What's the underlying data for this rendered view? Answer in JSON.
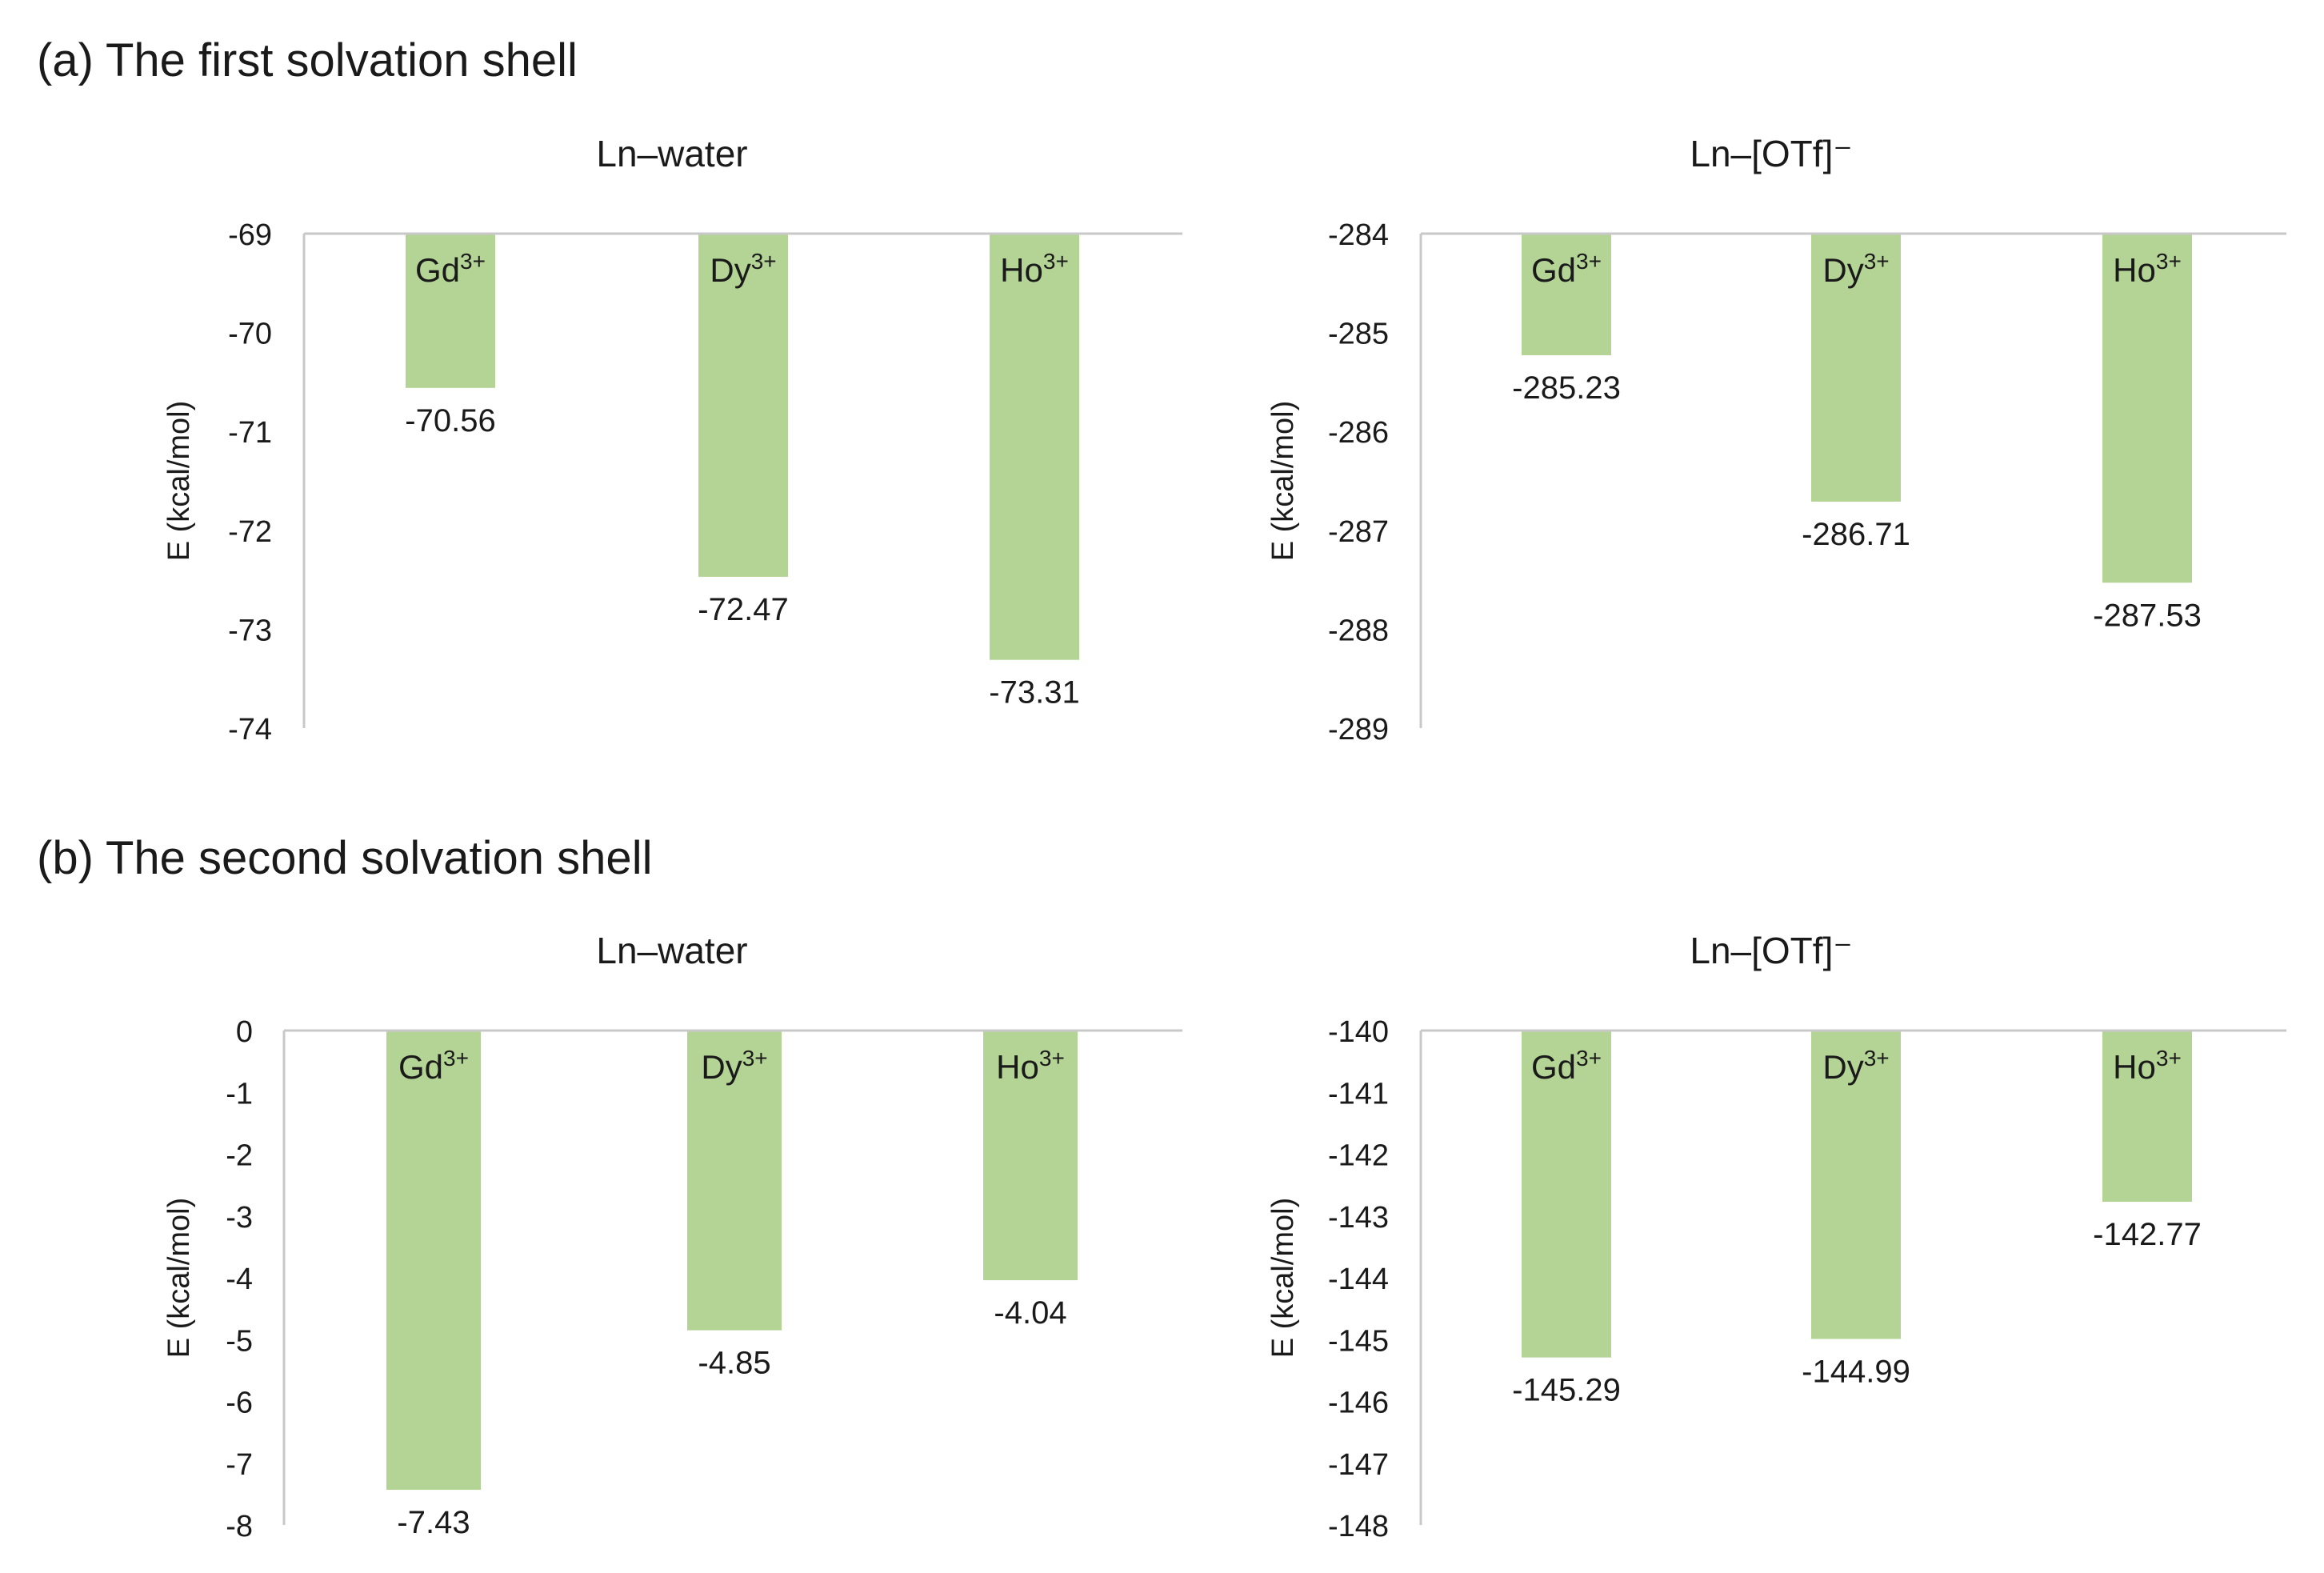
{
  "sections": [
    {
      "label": "(a) The first solvation shell"
    },
    {
      "label": "(b) The second solvation shell"
    }
  ],
  "colors": {
    "bar": "#b3d494",
    "axis": "#c8c8c8",
    "text": "#1a1a1a"
  },
  "chart_data": [
    {
      "type": "bar",
      "section": "(a) The first solvation shell",
      "title": "Ln–water",
      "ylabel": "E (kcal/mol)",
      "xlabel": "",
      "categories": [
        {
          "base": "Gd",
          "sup": "3+"
        },
        {
          "base": "Dy",
          "sup": "3+"
        },
        {
          "base": "Ho",
          "sup": "3+"
        }
      ],
      "values": [
        -70.56,
        -72.47,
        -73.31
      ],
      "value_labels": [
        "-70.56",
        "-72.47",
        "-73.31"
      ],
      "ylim": [
        -74,
        -69
      ],
      "yticks": [
        -69,
        -70,
        -71,
        -72,
        -73,
        -74
      ],
      "grid": false
    },
    {
      "type": "bar",
      "section": "(a) The first solvation shell",
      "title": "Ln–[OTf]⁻",
      "ylabel": "E (kcal/mol)",
      "xlabel": "",
      "categories": [
        {
          "base": "Gd",
          "sup": "3+"
        },
        {
          "base": "Dy",
          "sup": "3+"
        },
        {
          "base": "Ho",
          "sup": "3+"
        }
      ],
      "values": [
        -285.23,
        -286.71,
        -287.53
      ],
      "value_labels": [
        "-285.23",
        "-286.71",
        "-287.53"
      ],
      "ylim": [
        -289,
        -284
      ],
      "yticks": [
        -284,
        -285,
        -286,
        -287,
        -288,
        -289
      ],
      "grid": false
    },
    {
      "type": "bar",
      "section": "(b) The second solvation shell",
      "title": "Ln–water",
      "ylabel": "E (kcal/mol)",
      "xlabel": "",
      "categories": [
        {
          "base": "Gd",
          "sup": "3+"
        },
        {
          "base": "Dy",
          "sup": "3+"
        },
        {
          "base": "Ho",
          "sup": "3+"
        }
      ],
      "values": [
        -7.43,
        -4.85,
        -4.04
      ],
      "value_labels": [
        "-7.43",
        "-4.85",
        "-4.04"
      ],
      "ylim": [
        -8,
        0
      ],
      "yticks": [
        0,
        -1,
        -2,
        -3,
        -4,
        -5,
        -6,
        -7,
        -8
      ],
      "grid": false
    },
    {
      "type": "bar",
      "section": "(b) The second solvation shell",
      "title": "Ln–[OTf]⁻",
      "ylabel": "E (kcal/mol)",
      "xlabel": "",
      "categories": [
        {
          "base": "Gd",
          "sup": "3+"
        },
        {
          "base": "Dy",
          "sup": "3+"
        },
        {
          "base": "Ho",
          "sup": "3+"
        }
      ],
      "values": [
        -145.29,
        -144.99,
        -142.77
      ],
      "value_labels": [
        "-145.29",
        "-144.99",
        "-142.77"
      ],
      "ylim": [
        -148,
        -140
      ],
      "yticks": [
        -140,
        -141,
        -142,
        -143,
        -144,
        -145,
        -146,
        -147,
        -148
      ],
      "grid": false
    }
  ]
}
